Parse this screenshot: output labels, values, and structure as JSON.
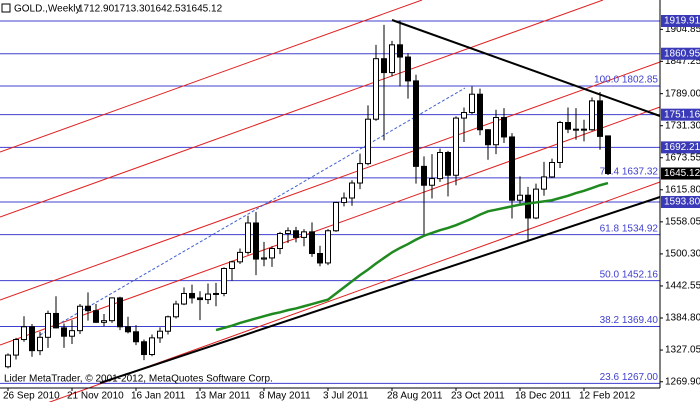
{
  "chart_data": {
    "type": "candlestick",
    "symbol": "GOLD.,Weekly",
    "header_values": [
      "1712.90",
      "1713.30",
      "1642.53",
      "1645.12"
    ],
    "footer": "Lider MetaTrader, © 2001-2012, MetaQuotes Software Corp.",
    "categories": [
      "26 Sep 2010",
      null,
      null,
      null,
      null,
      null,
      null,
      null,
      "21 Nov 2010",
      null,
      null,
      null,
      null,
      null,
      null,
      null,
      "16 Jan 2011",
      null,
      null,
      null,
      null,
      null,
      null,
      null,
      "13 Mar 2011",
      null,
      null,
      null,
      null,
      null,
      null,
      null,
      "8 May 2011",
      null,
      null,
      null,
      null,
      null,
      null,
      null,
      "3 Jul 2011",
      null,
      null,
      null,
      null,
      null,
      null,
      null,
      "28 Aug 2011",
      null,
      null,
      null,
      null,
      null,
      null,
      null,
      "23 Oct 2011",
      null,
      null,
      null,
      null,
      null,
      null,
      null,
      "18 Dec 2011",
      null,
      null,
      null,
      null,
      null,
      null,
      null,
      "12 Feb 2012",
      null,
      null,
      null
    ],
    "open": [
      1297,
      1318,
      1346,
      1369,
      1326,
      1350,
      1393,
      1367,
      1352,
      1362,
      1406,
      1398,
      1377,
      1380,
      1421,
      1369,
      1360,
      1342,
      1319,
      1349,
      1361,
      1387,
      1410,
      1429,
      1421,
      1418,
      1428,
      1429,
      1474,
      1486,
      1503,
      1556,
      1491,
      1493,
      1510,
      1537,
      1542,
      1530,
      1540,
      1501,
      1484,
      1542,
      1593,
      1601,
      1628,
      1663,
      1743,
      1852,
      1827,
      1877,
      1855,
      1812,
      1658,
      1624,
      1636,
      1683,
      1642,
      1745,
      1755,
      1788,
      1724,
      1697,
      1746,
      1711,
      1597,
      1606,
      1565,
      1617,
      1639,
      1665,
      1737,
      1725,
      1725,
      1724,
      1776,
      1712.9
    ],
    "high": [
      1321,
      1349,
      1388,
      1374,
      1360,
      1398,
      1424,
      1375,
      1381,
      1410,
      1431,
      1410,
      1392,
      1422,
      1423,
      1387,
      1372,
      1346,
      1355,
      1368,
      1389,
      1416,
      1440,
      1445,
      1433,
      1447,
      1448,
      1476,
      1488,
      1510,
      1569,
      1576,
      1522,
      1514,
      1540,
      1548,
      1549,
      1545,
      1557,
      1515,
      1545,
      1594,
      1611,
      1633,
      1681,
      1768,
      1877,
      1913,
      1884,
      1921,
      1862,
      1823,
      1676,
      1680,
      1690,
      1686,
      1748,
      1764,
      1802,
      1798,
      1725,
      1760,
      1763,
      1718,
      1640,
      1621,
      1627,
      1666,
      1672,
      1740,
      1764,
      1763,
      1742,
      1782,
      1792,
      1713.3
    ],
    "low": [
      1294,
      1310,
      1342,
      1315,
      1318,
      1331,
      1366,
      1331,
      1338,
      1356,
      1380,
      1376,
      1370,
      1376,
      1363,
      1357,
      1336,
      1309,
      1316,
      1340,
      1355,
      1384,
      1408,
      1411,
      1381,
      1410,
      1406,
      1424,
      1452,
      1482,
      1499,
      1462,
      1478,
      1477,
      1500,
      1520,
      1521,
      1514,
      1495,
      1478,
      1480,
      1540,
      1586,
      1587,
      1617,
      1660,
      1740,
      1705,
      1820,
      1802,
      1780,
      1627,
      1533,
      1600,
      1630,
      1604,
      1624,
      1702,
      1752,
      1714,
      1670,
      1680,
      1700,
      1564,
      1590,
      1523,
      1563,
      1605,
      1637,
      1655,
      1718,
      1706,
      1703,
      1722,
      1688,
      1642.53
    ],
    "close": [
      1318,
      1346,
      1369,
      1326,
      1350,
      1393,
      1367,
      1352,
      1362,
      1406,
      1398,
      1377,
      1380,
      1421,
      1369,
      1360,
      1342,
      1319,
      1349,
      1361,
      1387,
      1410,
      1429,
      1421,
      1418,
      1428,
      1429,
      1474,
      1486,
      1503,
      1556,
      1491,
      1493,
      1510,
      1537,
      1542,
      1530,
      1540,
      1501,
      1484,
      1542,
      1593,
      1601,
      1628,
      1663,
      1743,
      1852,
      1827,
      1877,
      1855,
      1812,
      1658,
      1624,
      1636,
      1683,
      1642,
      1745,
      1755,
      1788,
      1724,
      1697,
      1746,
      1711,
      1597,
      1606,
      1565,
      1617,
      1639,
      1665,
      1737,
      1725,
      1725,
      1724,
      1776,
      1712,
      1645.12
    ],
    "ma_values": [
      null,
      null,
      null,
      null,
      null,
      null,
      null,
      null,
      null,
      null,
      null,
      null,
      null,
      null,
      null,
      null,
      null,
      null,
      null,
      null,
      null,
      null,
      null,
      null,
      null,
      null,
      1363,
      1367,
      1371,
      1376,
      1380,
      1384,
      1388,
      1392,
      1395,
      1399,
      1402,
      1406,
      1410,
      1414,
      1418,
      1429,
      1440,
      1451,
      1462,
      1472,
      1483,
      1493,
      1503,
      1511,
      1518,
      1526,
      1533,
      1538,
      1543,
      1547,
      1552,
      1558,
      1564,
      1571,
      1577,
      1580,
      1583,
      1586,
      1589,
      1591,
      1593,
      1595,
      1597,
      1601,
      1605,
      1610,
      1614,
      1619,
      1624,
      1628
    ],
    "ma_color": "#1f8a1f",
    "up_color": "#ffffff",
    "down_color": "#000000",
    "level_color": "#4040d0",
    "ylim": [
      1258.69,
      1957.75
    ],
    "yticks": [
      1904.85,
      1847.25,
      {
        "value": 1789,
        "label": "1789.00"
      },
      {
        "value": 1731.3,
        "label": "1731.30"
      },
      1673.55,
      {
        "value": 1615.8,
        "label": "1615.80"
      },
      1558.05,
      {
        "value": 1500.3,
        "label": "1500.30"
      },
      1442.55,
      {
        "value": 1384.8,
        "label": "1384.80"
      },
      1327.05,
      {
        "value": 1269.9,
        "label": "1269.90"
      }
    ],
    "levels": [
      1919.91,
      1860.95,
      1751.16,
      1692.21,
      {
        "value": 1593.8,
        "label": "1593.80"
      }
    ],
    "current_price": 1645.12,
    "fib_levels": [
      {
        "value": 1802.85,
        "label": "100.0 1802.85"
      },
      {
        "value": 1637.32,
        "label": "76.4 1637.32"
      },
      {
        "value": 1534.92,
        "label": "61.8 1534.92"
      },
      {
        "value": 1452.16,
        "label": "50.0 1452.16"
      },
      {
        "value": 1369.4,
        "label": "38.2 1369.40"
      },
      {
        "value": 1267,
        "label": "23.6 1267.00"
      }
    ]
  }
}
